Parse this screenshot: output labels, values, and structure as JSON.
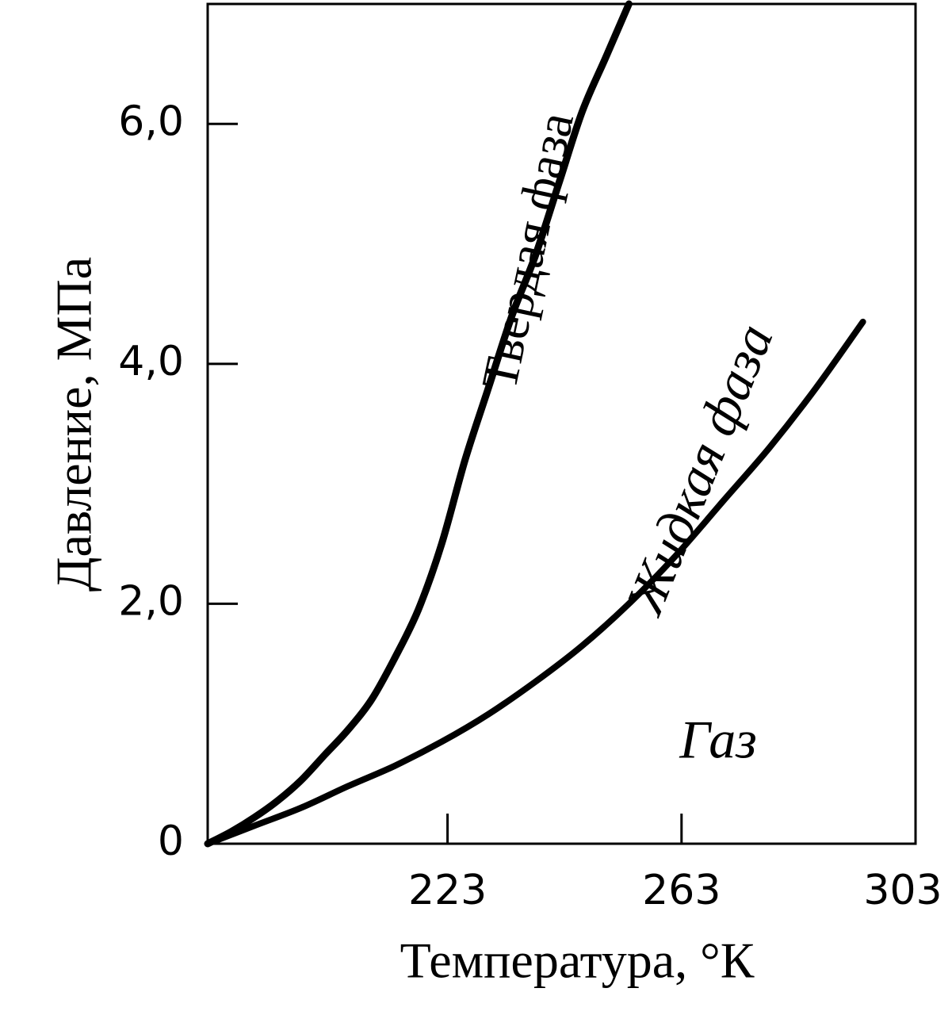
{
  "chart_data": {
    "type": "line",
    "xlabel": "Температура, °К",
    "ylabel": "Давление, МПа",
    "xlim": [
      182,
      303
    ],
    "ylim": [
      0,
      7.0
    ],
    "x_ticks": [
      {
        "value": 223,
        "label": "223"
      },
      {
        "value": 263,
        "label": "263"
      },
      {
        "value": 303,
        "label": "303"
      }
    ],
    "y_ticks": [
      {
        "value": 0,
        "label": "0"
      },
      {
        "value": 2.0,
        "label": "2,0"
      },
      {
        "value": 4.0,
        "label": "4,0"
      },
      {
        "value": 6.0,
        "label": "6,0"
      }
    ],
    "grid": false,
    "series": [
      {
        "name": "Твердая фаза",
        "x": [
          182,
          186,
          190,
          194,
          198,
          202,
          206,
          210,
          214,
          218,
          222,
          226,
          230,
          234,
          238,
          242,
          246,
          250,
          254
        ],
        "y": [
          0,
          0.1,
          0.22,
          0.36,
          0.53,
          0.74,
          0.95,
          1.2,
          1.55,
          1.95,
          2.5,
          3.2,
          3.8,
          4.4,
          4.9,
          5.5,
          6.1,
          6.55,
          7.0
        ]
      },
      {
        "name": "Жидкая фаза",
        "x": [
          182,
          190,
          198,
          206,
          214,
          222,
          230,
          238,
          246,
          254,
          262,
          270,
          278,
          286,
          294
        ],
        "y": [
          0,
          0.15,
          0.3,
          0.48,
          0.65,
          0.85,
          1.08,
          1.35,
          1.65,
          2.0,
          2.4,
          2.85,
          3.3,
          3.8,
          4.35
        ]
      }
    ],
    "annotations": [
      {
        "text": "Газ",
        "x": 270,
        "y": 0.85
      }
    ]
  }
}
